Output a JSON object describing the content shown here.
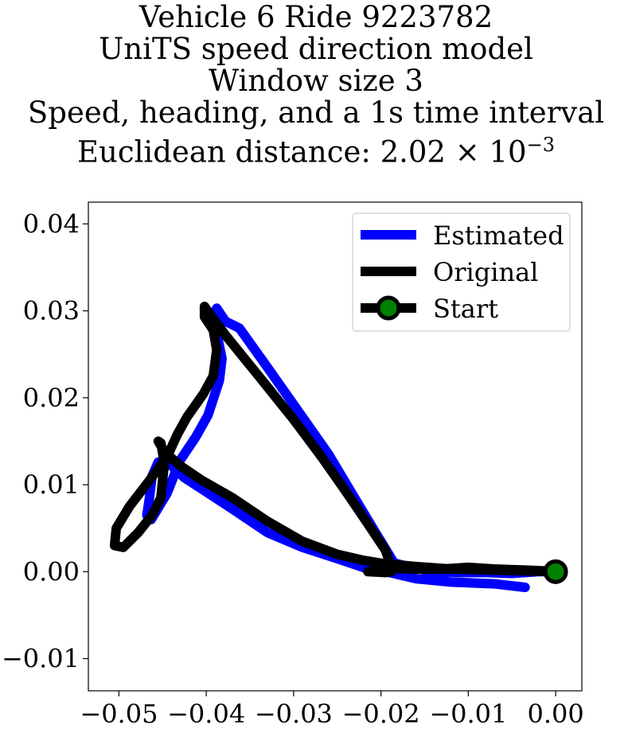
{
  "chart_data": {
    "type": "line",
    "title_lines": [
      "Vehicle 6 Ride 9223782",
      "UniTS speed direction model",
      "Window size 3",
      "Speed, heading, and a 1s time interval",
      "Euclidean distance: 2.02 × 10⁻³"
    ],
    "title_exponent_base": "Euclidean distance: 2.02 × 10",
    "title_exponent": "−3",
    "xlabel": "",
    "ylabel": "",
    "xlim": [
      -0.0535,
      0.003
    ],
    "ylim": [
      -0.0137,
      0.0425
    ],
    "xticks": [
      {
        "v": -0.05,
        "label": "−0.05"
      },
      {
        "v": -0.04,
        "label": "−0.04"
      },
      {
        "v": -0.03,
        "label": "−0.03"
      },
      {
        "v": -0.02,
        "label": "−0.02"
      },
      {
        "v": -0.01,
        "label": "−0.01"
      },
      {
        "v": 0.0,
        "label": "0.00"
      }
    ],
    "yticks": [
      {
        "v": -0.01,
        "label": "−0.01"
      },
      {
        "v": 0.0,
        "label": "0.00"
      },
      {
        "v": 0.01,
        "label": "0.01"
      },
      {
        "v": 0.02,
        "label": "0.02"
      },
      {
        "v": 0.03,
        "label": "0.03"
      },
      {
        "v": 0.04,
        "label": "0.04"
      }
    ],
    "grid": false,
    "legend_position": "top-right",
    "series": [
      {
        "name": "Estimated",
        "color": "#0000ff",
        "points": [
          [
            -0.0035,
            -0.0018
          ],
          [
            -0.007,
            -0.0014
          ],
          [
            -0.012,
            -0.0012
          ],
          [
            -0.016,
            -0.0008
          ],
          [
            -0.019,
            -0.0001
          ],
          [
            -0.0215,
            0.0003
          ],
          [
            -0.025,
            0.0015
          ],
          [
            -0.029,
            0.0028
          ],
          [
            -0.033,
            0.0045
          ],
          [
            -0.037,
            0.0072
          ],
          [
            -0.0405,
            0.0095
          ],
          [
            -0.0425,
            0.0108
          ],
          [
            -0.044,
            0.0122
          ],
          [
            -0.0455,
            0.0126
          ],
          [
            -0.0462,
            0.011
          ],
          [
            -0.0465,
            0.0085
          ],
          [
            -0.0468,
            0.0065
          ],
          [
            -0.0463,
            0.006
          ],
          [
            -0.0445,
            0.009
          ],
          [
            -0.043,
            0.0128
          ],
          [
            -0.0412,
            0.0155
          ],
          [
            -0.0398,
            0.018
          ],
          [
            -0.0385,
            0.022
          ],
          [
            -0.0382,
            0.0245
          ],
          [
            -0.0388,
            0.0275
          ],
          [
            -0.0392,
            0.0295
          ],
          [
            -0.0388,
            0.0303
          ],
          [
            -0.0378,
            0.0288
          ],
          [
            -0.0362,
            0.028
          ],
          [
            -0.033,
            0.0235
          ],
          [
            -0.0295,
            0.0185
          ],
          [
            -0.026,
            0.0135
          ],
          [
            -0.0232,
            0.0088
          ],
          [
            -0.0208,
            0.0048
          ],
          [
            -0.0185,
            0.001
          ],
          [
            -0.0165,
            0.0005
          ],
          [
            -0.014,
            0.0
          ],
          [
            -0.011,
            -0.0001
          ],
          [
            -0.008,
            -0.0001
          ],
          [
            -0.005,
            -0.0002
          ],
          [
            -0.002,
            0.0
          ],
          [
            0.0,
            0.0
          ]
        ]
      },
      {
        "name": "Original",
        "color": "#000000",
        "points": [
          [
            0.0,
            0.0
          ],
          [
            -0.004,
            0.0001
          ],
          [
            -0.008,
            0.0002
          ],
          [
            -0.012,
            0.0003
          ],
          [
            -0.016,
            0.0006
          ],
          [
            -0.0195,
            0.0009
          ],
          [
            -0.022,
            0.0013
          ],
          [
            -0.025,
            0.002
          ],
          [
            -0.029,
            0.0035
          ],
          [
            -0.033,
            0.0058
          ],
          [
            -0.037,
            0.0085
          ],
          [
            -0.0405,
            0.0105
          ],
          [
            -0.043,
            0.0122
          ],
          [
            -0.0448,
            0.0138
          ],
          [
            -0.0455,
            0.015
          ],
          [
            -0.0452,
            0.0148
          ],
          [
            -0.0448,
            0.0125
          ],
          [
            -0.0452,
            0.0085
          ],
          [
            -0.0462,
            0.0065
          ],
          [
            -0.0478,
            0.0045
          ],
          [
            -0.0495,
            0.0028
          ],
          [
            -0.0505,
            0.003
          ],
          [
            -0.0503,
            0.005
          ],
          [
            -0.0488,
            0.0075
          ],
          [
            -0.0465,
            0.0105
          ],
          [
            -0.0445,
            0.0132
          ],
          [
            -0.0433,
            0.0158
          ],
          [
            -0.0422,
            0.0178
          ],
          [
            -0.0403,
            0.0205
          ],
          [
            -0.0392,
            0.0225
          ],
          [
            -0.0388,
            0.0255
          ],
          [
            -0.0392,
            0.0278
          ],
          [
            -0.0402,
            0.0293
          ],
          [
            -0.0402,
            0.0305
          ],
          [
            -0.0395,
            0.0295
          ],
          [
            -0.0378,
            0.0272
          ],
          [
            -0.034,
            0.0225
          ],
          [
            -0.03,
            0.0175
          ],
          [
            -0.0268,
            0.0132
          ],
          [
            -0.024,
            0.0092
          ],
          [
            -0.0215,
            0.0055
          ],
          [
            -0.0195,
            0.0025
          ],
          [
            -0.0188,
            0.0005
          ],
          [
            -0.0188,
            0.0
          ],
          [
            -0.0195,
            -0.0001
          ],
          [
            -0.0215,
            0.0
          ],
          [
            -0.019,
            0.0004
          ],
          [
            -0.0165,
            0.0003
          ],
          [
            -0.013,
            0.0003
          ],
          [
            -0.01,
            0.0005
          ],
          [
            -0.007,
            0.0003
          ],
          [
            -0.004,
            0.0002
          ],
          [
            -0.0015,
            0.0001
          ],
          [
            0.0,
            0.0
          ]
        ]
      },
      {
        "name": "Start",
        "color": "#000000",
        "marker_fill": "#008000",
        "points": [
          [
            0.0,
            0.0
          ]
        ]
      }
    ]
  }
}
